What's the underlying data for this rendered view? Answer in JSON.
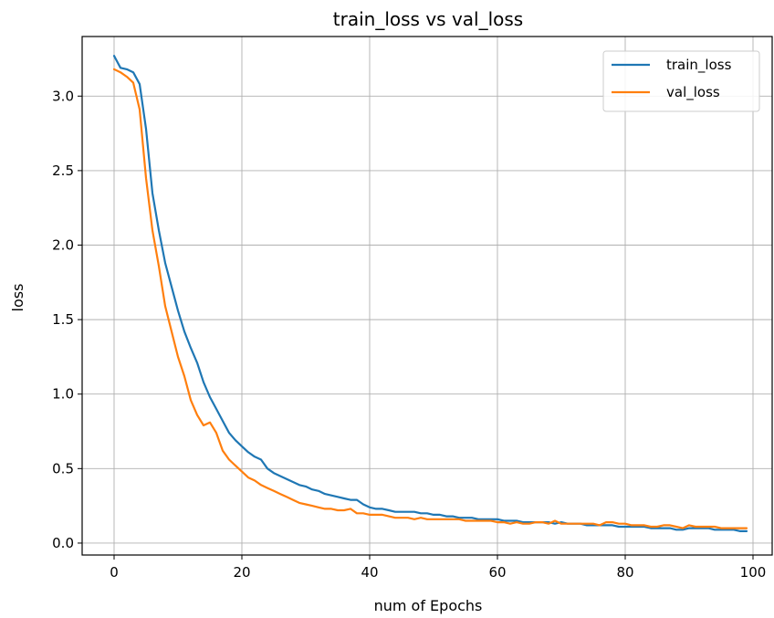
{
  "chart_data": {
    "type": "line",
    "title": "train_loss vs val_loss",
    "xlabel": "num of Epochs",
    "ylabel": "loss",
    "xlim": [
      -5,
      103
    ],
    "ylim": [
      -0.08,
      3.4
    ],
    "xticks": [
      0,
      20,
      40,
      60,
      80,
      100
    ],
    "yticks": [
      0.0,
      0.5,
      1.0,
      1.5,
      2.0,
      2.5,
      3.0
    ],
    "xtick_labels": [
      "0",
      "20",
      "40",
      "60",
      "80",
      "100"
    ],
    "ytick_labels": [
      "0.0",
      "0.5",
      "1.0",
      "1.5",
      "2.0",
      "2.5",
      "3.0"
    ],
    "grid": true,
    "legend_position": "top-right",
    "series": [
      {
        "name": "train_loss",
        "color": "#1f77b4",
        "x": [
          0,
          1,
          2,
          3,
          4,
          5,
          6,
          7,
          8,
          9,
          10,
          11,
          12,
          13,
          14,
          15,
          16,
          17,
          18,
          19,
          20,
          21,
          22,
          23,
          24,
          25,
          26,
          27,
          28,
          29,
          30,
          31,
          32,
          33,
          34,
          35,
          36,
          37,
          38,
          39,
          40,
          41,
          42,
          43,
          44,
          45,
          46,
          47,
          48,
          49,
          50,
          51,
          52,
          53,
          54,
          55,
          56,
          57,
          58,
          59,
          60,
          61,
          62,
          63,
          64,
          65,
          66,
          67,
          68,
          69,
          70,
          71,
          72,
          73,
          74,
          75,
          76,
          77,
          78,
          79,
          80,
          81,
          82,
          83,
          84,
          85,
          86,
          87,
          88,
          89,
          90,
          91,
          92,
          93,
          94,
          95,
          96,
          97,
          98,
          99
        ],
        "values": [
          3.27,
          3.19,
          3.18,
          3.16,
          3.08,
          2.78,
          2.35,
          2.1,
          1.88,
          1.72,
          1.56,
          1.42,
          1.31,
          1.21,
          1.08,
          0.98,
          0.9,
          0.82,
          0.74,
          0.69,
          0.65,
          0.61,
          0.58,
          0.56,
          0.5,
          0.47,
          0.45,
          0.43,
          0.41,
          0.39,
          0.38,
          0.36,
          0.35,
          0.33,
          0.32,
          0.31,
          0.3,
          0.29,
          0.29,
          0.26,
          0.24,
          0.23,
          0.23,
          0.22,
          0.21,
          0.21,
          0.21,
          0.21,
          0.2,
          0.2,
          0.19,
          0.19,
          0.18,
          0.18,
          0.17,
          0.17,
          0.17,
          0.16,
          0.16,
          0.16,
          0.16,
          0.15,
          0.15,
          0.15,
          0.14,
          0.14,
          0.14,
          0.14,
          0.14,
          0.13,
          0.14,
          0.13,
          0.13,
          0.13,
          0.12,
          0.12,
          0.12,
          0.12,
          0.12,
          0.11,
          0.11,
          0.11,
          0.11,
          0.11,
          0.1,
          0.1,
          0.1,
          0.1,
          0.09,
          0.09,
          0.1,
          0.1,
          0.1,
          0.1,
          0.09,
          0.09,
          0.09,
          0.09,
          0.08,
          0.08
        ]
      },
      {
        "name": "val_loss",
        "color": "#ff7f0e",
        "x": [
          0,
          1,
          2,
          3,
          4,
          5,
          6,
          7,
          8,
          9,
          10,
          11,
          12,
          13,
          14,
          15,
          16,
          17,
          18,
          19,
          20,
          21,
          22,
          23,
          24,
          25,
          26,
          27,
          28,
          29,
          30,
          31,
          32,
          33,
          34,
          35,
          36,
          37,
          38,
          39,
          40,
          41,
          42,
          43,
          44,
          45,
          46,
          47,
          48,
          49,
          50,
          51,
          52,
          53,
          54,
          55,
          56,
          57,
          58,
          59,
          60,
          61,
          62,
          63,
          64,
          65,
          66,
          67,
          68,
          69,
          70,
          71,
          72,
          73,
          74,
          75,
          76,
          77,
          78,
          79,
          80,
          81,
          82,
          83,
          84,
          85,
          86,
          87,
          88,
          89,
          90,
          91,
          92,
          93,
          94,
          95,
          96,
          97,
          98,
          99
        ],
        "values": [
          3.18,
          3.16,
          3.13,
          3.09,
          2.91,
          2.45,
          2.1,
          1.86,
          1.59,
          1.42,
          1.25,
          1.12,
          0.96,
          0.86,
          0.79,
          0.81,
          0.74,
          0.62,
          0.56,
          0.52,
          0.48,
          0.44,
          0.42,
          0.39,
          0.37,
          0.35,
          0.33,
          0.31,
          0.29,
          0.27,
          0.26,
          0.25,
          0.24,
          0.23,
          0.23,
          0.22,
          0.22,
          0.23,
          0.2,
          0.2,
          0.19,
          0.19,
          0.19,
          0.18,
          0.17,
          0.17,
          0.17,
          0.16,
          0.17,
          0.16,
          0.16,
          0.16,
          0.16,
          0.16,
          0.16,
          0.15,
          0.15,
          0.15,
          0.15,
          0.15,
          0.14,
          0.14,
          0.13,
          0.14,
          0.13,
          0.13,
          0.14,
          0.14,
          0.13,
          0.15,
          0.13,
          0.13,
          0.13,
          0.13,
          0.13,
          0.13,
          0.12,
          0.14,
          0.14,
          0.13,
          0.13,
          0.12,
          0.12,
          0.12,
          0.11,
          0.11,
          0.12,
          0.12,
          0.11,
          0.1,
          0.12,
          0.11,
          0.11,
          0.11,
          0.11,
          0.1,
          0.1,
          0.1,
          0.1,
          0.1
        ]
      }
    ]
  }
}
